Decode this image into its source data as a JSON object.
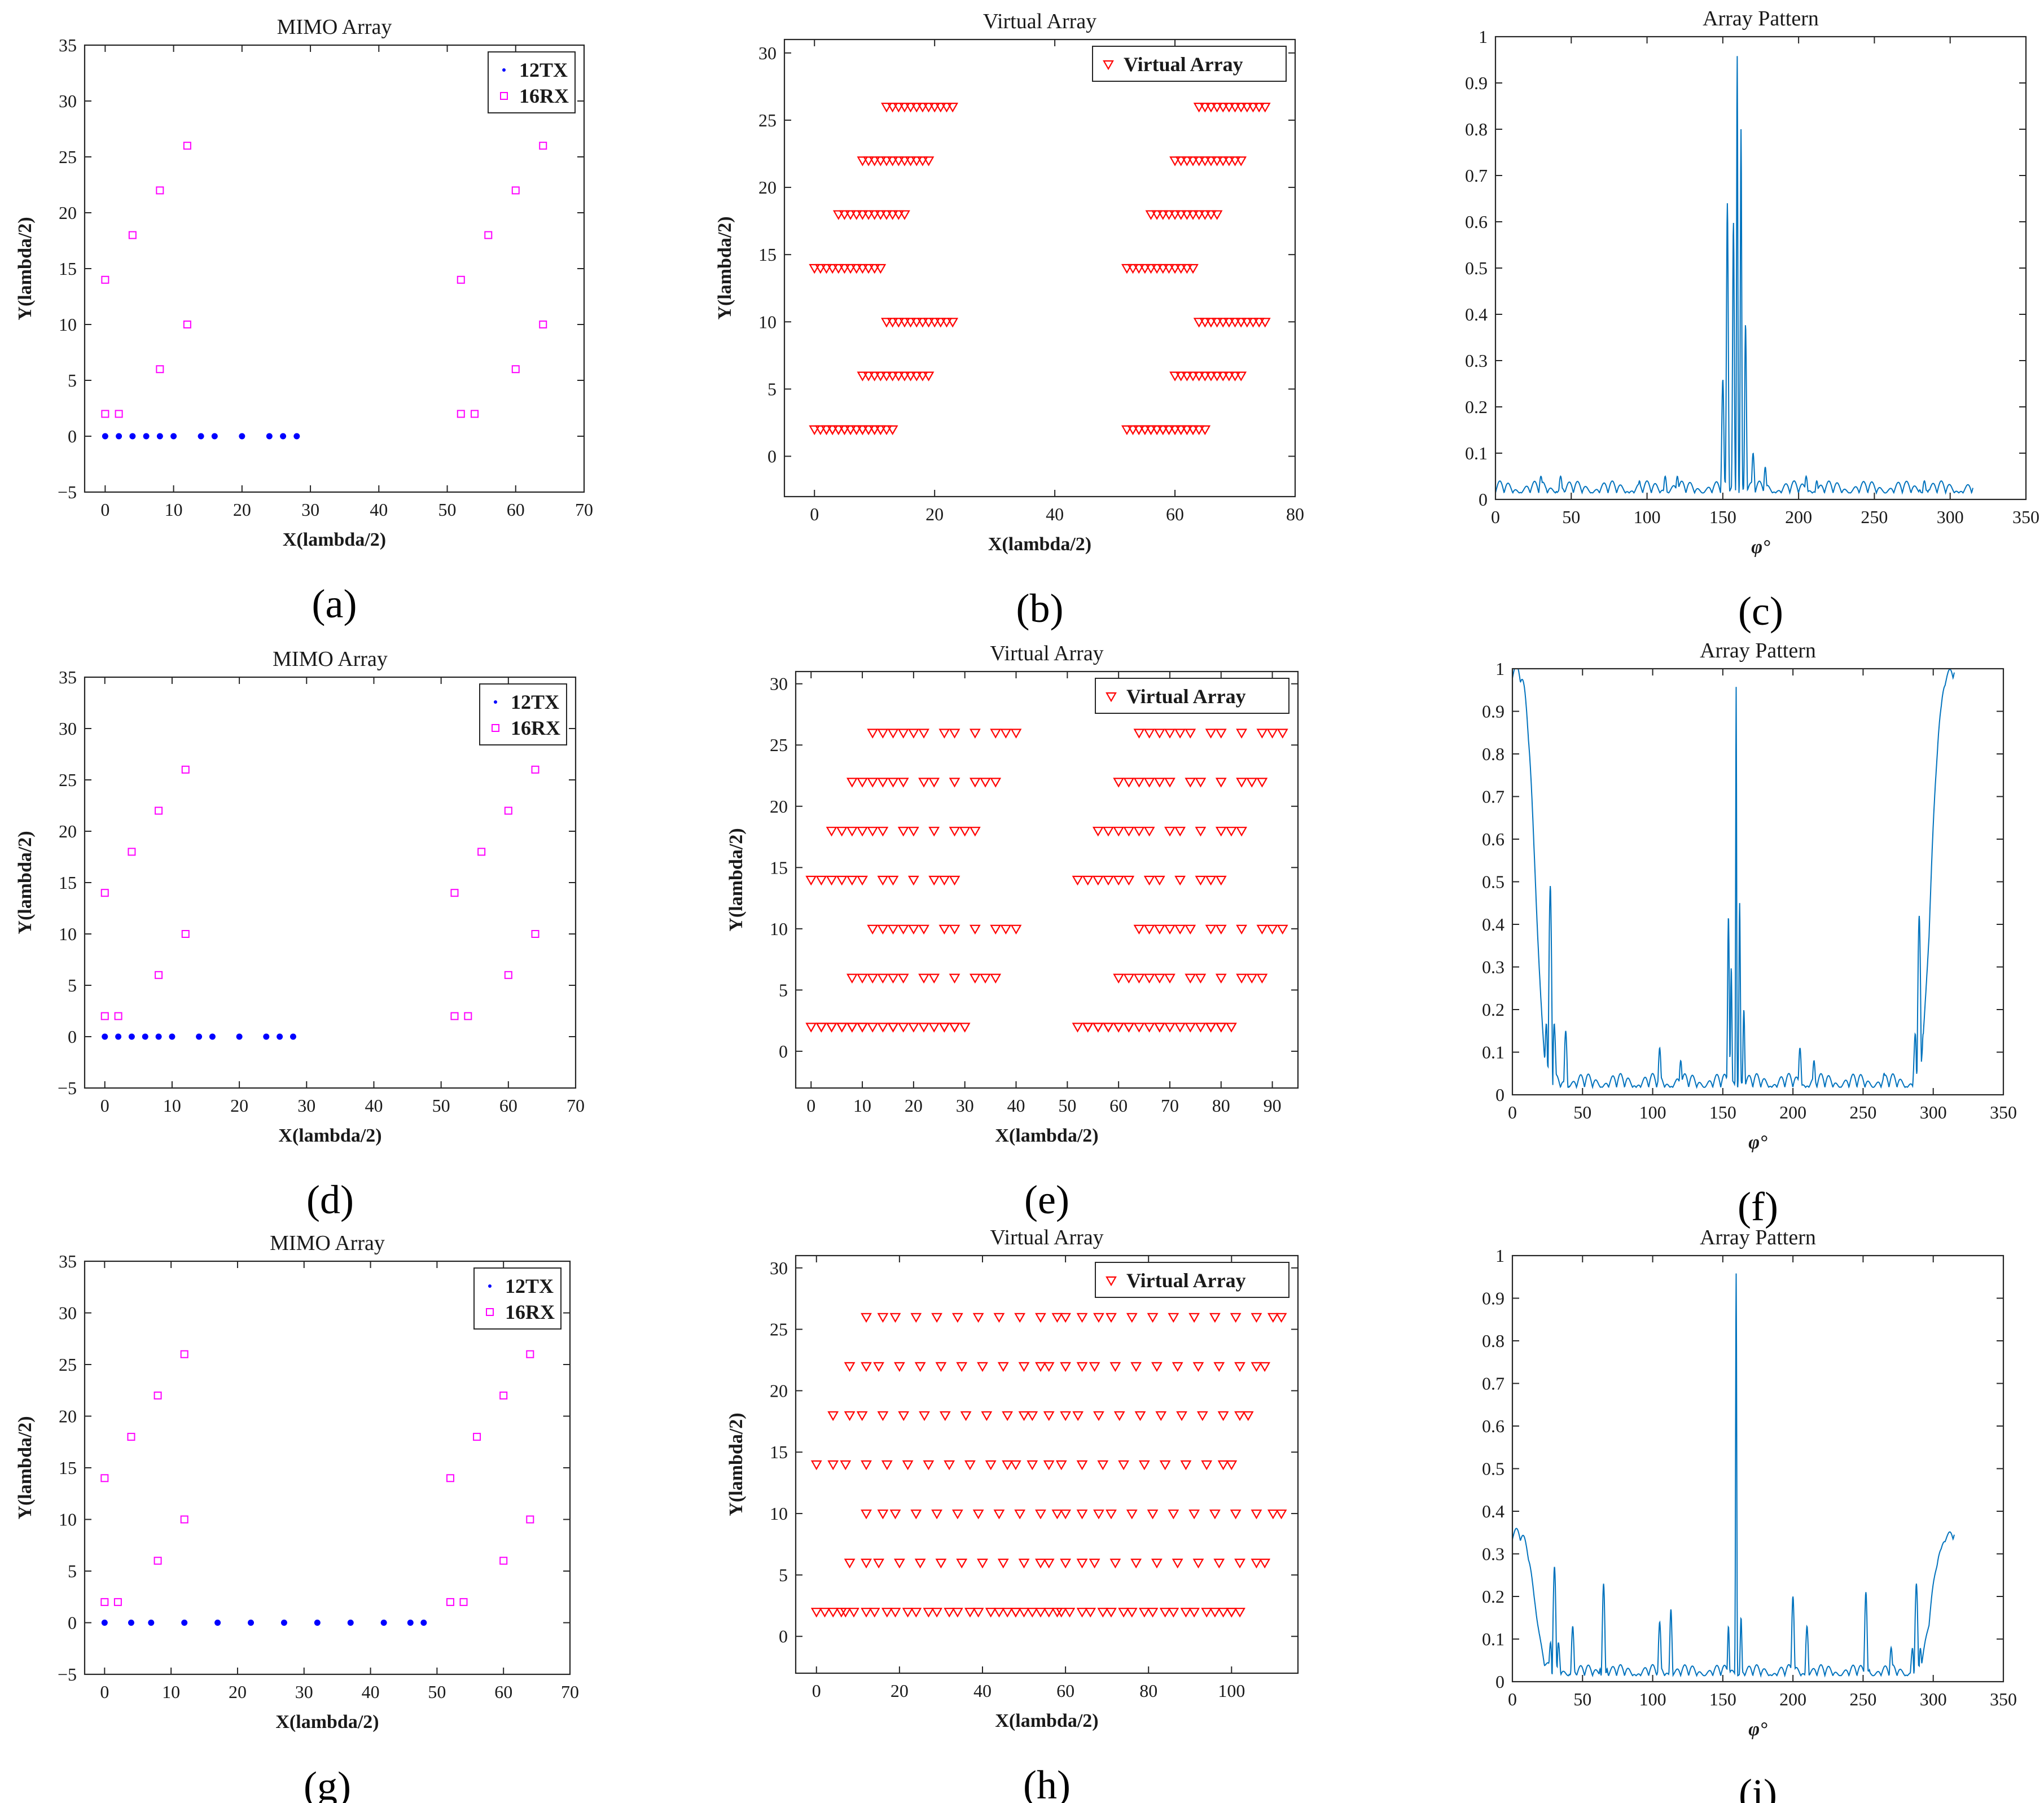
{
  "colors": {
    "tx": "#0000ff",
    "rx": "#ff00ff",
    "virtual": "#ff0000",
    "pattern": "#0072bd",
    "axis": "#262626"
  },
  "chart_data": [
    {
      "id": "a",
      "type": "scatter",
      "caption": "a",
      "title": "MIMO Array",
      "xlabel": "X(lambda/2)",
      "ylabel": "Y(lambda/2)",
      "xlim": [
        -3,
        70
      ],
      "ylim": [
        -5,
        35
      ],
      "xticks": [
        0,
        10,
        20,
        30,
        40,
        50,
        60,
        70
      ],
      "yticks": [
        -5,
        0,
        5,
        10,
        15,
        20,
        25,
        30,
        35
      ],
      "series": [
        {
          "name": "12TX",
          "marker": "dot",
          "color": "#0000ff",
          "x": [
            0,
            2,
            4,
            6,
            8,
            10,
            14,
            16,
            20,
            24,
            26,
            28
          ],
          "y": [
            0,
            0,
            0,
            0,
            0,
            0,
            0,
            0,
            0,
            0,
            0,
            0
          ]
        },
        {
          "name": "16RX",
          "marker": "square",
          "color": "#ff00ff",
          "x": [
            0,
            2,
            0,
            4,
            8,
            8,
            12,
            12,
            52,
            54,
            52,
            56,
            60,
            60,
            64,
            64
          ],
          "y": [
            2,
            2,
            14,
            18,
            22,
            6,
            26,
            10,
            2,
            2,
            14,
            18,
            22,
            6,
            26,
            10
          ]
        }
      ],
      "legend_position": "top-right"
    },
    {
      "id": "b",
      "type": "scatter",
      "caption": "b",
      "title": "Virtual Array",
      "xlabel": "X(lambda/2)",
      "ylabel": "Y(lambda/2)",
      "xlim": [
        -5,
        80
      ],
      "ylim": [
        -3,
        31
      ],
      "xticks": [
        0,
        20,
        40,
        60,
        80
      ],
      "yticks": [
        0,
        5,
        10,
        15,
        20,
        25,
        30
      ],
      "series": [
        {
          "name": "Virtual Array",
          "marker": "triangle",
          "color": "#ff0000",
          "tx": [
            0,
            1,
            2,
            3,
            4,
            5,
            6,
            7,
            8,
            9,
            10,
            11
          ],
          "rx_x": [
            0,
            2,
            0,
            4,
            8,
            8,
            12,
            12,
            52,
            54,
            52,
            56,
            60,
            60,
            64,
            64
          ],
          "rx_y": [
            2,
            2,
            14,
            18,
            22,
            6,
            26,
            10,
            2,
            2,
            14,
            18,
            22,
            6,
            26,
            10
          ]
        }
      ],
      "legend_position": "top-right"
    },
    {
      "id": "c",
      "type": "line",
      "caption": "c",
      "title": "Array Pattern",
      "xlabel": "φ°",
      "ylabel": "",
      "xlim": [
        0,
        350
      ],
      "ylim": [
        0,
        1
      ],
      "xticks": [
        0,
        50,
        100,
        150,
        200,
        250,
        300,
        350
      ],
      "yticks": [
        0,
        0.1,
        0.2,
        0.3,
        0.4,
        0.5,
        0.6,
        0.7,
        0.8,
        0.9,
        1
      ],
      "curve": {
        "x_end": 315,
        "base": 0.04,
        "ends": [
          0.0,
          0.0
        ],
        "peaks": [
          [
            30,
            0.05,
            4
          ],
          [
            43,
            0.05,
            3
          ],
          [
            95,
            0.04,
            2
          ],
          [
            112,
            0.05,
            2
          ],
          [
            120,
            0.05,
            2
          ],
          [
            150,
            0.26,
            1.2
          ],
          [
            153,
            0.64,
            1
          ],
          [
            157,
            0.6,
            0.9
          ],
          [
            159.5,
            0.96,
            0.6
          ],
          [
            162,
            0.8,
            0.7
          ],
          [
            165,
            0.38,
            0.9
          ],
          [
            170,
            0.1,
            1.5
          ],
          [
            178,
            0.07,
            1.5
          ],
          [
            205,
            0.05,
            2
          ],
          [
            212,
            0.04,
            2
          ],
          [
            283,
            0.04,
            4
          ]
        ]
      },
      "series": [
        {
          "name": "pattern",
          "color": "#0072bd"
        }
      ]
    },
    {
      "id": "d",
      "type": "scatter",
      "caption": "d",
      "title": "MIMO Array",
      "xlabel": "X(lambda/2)",
      "ylabel": "Y(lambda/2)",
      "xlim": [
        -3,
        70
      ],
      "ylim": [
        -5,
        35
      ],
      "xticks": [
        0,
        10,
        20,
        30,
        40,
        50,
        60,
        70
      ],
      "yticks": [
        -5,
        0,
        5,
        10,
        15,
        20,
        25,
        30,
        35
      ],
      "series": [
        {
          "name": "12TX",
          "marker": "dot",
          "color": "#0000ff",
          "x": [
            0,
            2,
            4,
            6,
            8,
            10,
            14,
            16,
            20,
            24,
            26,
            28
          ],
          "y": [
            0,
            0,
            0,
            0,
            0,
            0,
            0,
            0,
            0,
            0,
            0,
            0
          ]
        },
        {
          "name": "16RX",
          "marker": "square",
          "color": "#ff00ff",
          "x": [
            0,
            2,
            0,
            4,
            8,
            8,
            12,
            12,
            52,
            54,
            52,
            56,
            60,
            60,
            64,
            64
          ],
          "y": [
            2,
            2,
            14,
            18,
            22,
            6,
            26,
            10,
            2,
            2,
            14,
            18,
            22,
            6,
            26,
            10
          ]
        }
      ],
      "legend_position": "top-right"
    },
    {
      "id": "e",
      "type": "scatter",
      "caption": "e",
      "title": "Virtual Array",
      "xlabel": "X(lambda/2)",
      "ylabel": "Y(lambda/2)",
      "xlim": [
        -3,
        95
      ],
      "ylim": [
        -3,
        31
      ],
      "xticks": [
        0,
        10,
        20,
        30,
        40,
        50,
        60,
        70,
        80,
        90
      ],
      "yticks": [
        0,
        5,
        10,
        15,
        20,
        25,
        30
      ],
      "series": [
        {
          "name": "Virtual Array",
          "marker": "triangle",
          "color": "#ff0000",
          "tx": [
            0,
            2,
            4,
            6,
            8,
            10,
            14,
            16,
            20,
            24,
            26,
            28
          ],
          "rx_x": [
            0,
            2,
            0,
            4,
            8,
            8,
            12,
            12,
            52,
            54,
            52,
            56,
            60,
            60,
            64,
            64
          ],
          "rx_y": [
            2,
            2,
            14,
            18,
            22,
            6,
            26,
            10,
            2,
            2,
            14,
            18,
            22,
            6,
            26,
            10
          ]
        }
      ],
      "legend_position": "top-right"
    },
    {
      "id": "f",
      "type": "line",
      "caption": "f",
      "title": "Array Pattern",
      "xlabel": "φ°",
      "ylabel": "",
      "xlim": [
        0,
        350
      ],
      "ylim": [
        0,
        1
      ],
      "xticks": [
        0,
        50,
        100,
        150,
        200,
        250,
        300,
        350
      ],
      "yticks": [
        0,
        0.1,
        0.2,
        0.3,
        0.4,
        0.5,
        0.6,
        0.7,
        0.8,
        0.9,
        1
      ],
      "curve": {
        "x_end": 315,
        "base": 0.05,
        "ends": [
          0.96,
          0.96
        ],
        "peaks": [
          [
            27,
            0.49,
            3
          ],
          [
            38,
            0.15,
            2
          ],
          [
            105,
            0.11,
            2
          ],
          [
            120,
            0.08,
            2
          ],
          [
            154,
            0.42,
            1
          ],
          [
            156,
            0.3,
            0.8
          ],
          [
            159.5,
            0.96,
            0.5
          ],
          [
            162,
            0.45,
            0.8
          ],
          [
            165,
            0.2,
            1
          ],
          [
            205,
            0.11,
            2
          ],
          [
            215,
            0.08,
            2
          ],
          [
            265,
            0.05,
            3
          ],
          [
            290,
            0.42,
            3
          ]
        ]
      },
      "series": [
        {
          "name": "pattern",
          "color": "#0072bd"
        }
      ]
    },
    {
      "id": "g",
      "type": "scatter",
      "caption": "g",
      "title": "MIMO Array",
      "xlabel": "X(lambda/2)",
      "ylabel": "Y(lambda/2)",
      "xlim": [
        -3,
        70
      ],
      "ylim": [
        -5,
        35
      ],
      "xticks": [
        0,
        10,
        20,
        30,
        40,
        50,
        60,
        70
      ],
      "yticks": [
        -5,
        0,
        5,
        10,
        15,
        20,
        25,
        30,
        35
      ],
      "series": [
        {
          "name": "12TX",
          "marker": "dot",
          "color": "#0000ff",
          "x": [
            0,
            4,
            7,
            12,
            17,
            22,
            27,
            32,
            37,
            42,
            46,
            48
          ],
          "y": [
            0,
            0,
            0,
            0,
            0,
            0,
            0,
            0,
            0,
            0,
            0,
            0
          ]
        },
        {
          "name": "16RX",
          "marker": "square",
          "color": "#ff00ff",
          "x": [
            0,
            2,
            0,
            4,
            8,
            8,
            12,
            12,
            52,
            54,
            52,
            56,
            60,
            60,
            64,
            64
          ],
          "y": [
            2,
            2,
            14,
            18,
            22,
            6,
            26,
            10,
            2,
            2,
            14,
            18,
            22,
            6,
            26,
            10
          ]
        }
      ],
      "legend_position": "top-right"
    },
    {
      "id": "h",
      "type": "scatter",
      "caption": "h",
      "title": "Virtual Array",
      "xlabel": "X(lambda/2)",
      "ylabel": "Y(lambda/2)",
      "xlim": [
        -5,
        116
      ],
      "ylim": [
        -3,
        31
      ],
      "xticks": [
        0,
        20,
        40,
        60,
        80,
        100
      ],
      "yticks": [
        0,
        5,
        10,
        15,
        20,
        25,
        30
      ],
      "series": [
        {
          "name": "Virtual Array",
          "marker": "triangle",
          "color": "#ff0000",
          "tx": [
            0,
            4,
            7,
            12,
            17,
            22,
            27,
            32,
            37,
            42,
            46,
            48
          ],
          "rx_x": [
            0,
            2,
            0,
            4,
            8,
            8,
            12,
            12,
            52,
            54,
            52,
            56,
            60,
            60,
            64,
            64
          ],
          "rx_y": [
            2,
            2,
            14,
            18,
            22,
            6,
            26,
            10,
            2,
            2,
            14,
            18,
            22,
            6,
            26,
            10
          ]
        }
      ],
      "legend_position": "top-right"
    },
    {
      "id": "i",
      "type": "line",
      "caption": "i",
      "title": "Array Pattern",
      "xlabel": "φ°",
      "ylabel": "",
      "xlim": [
        0,
        350
      ],
      "ylim": [
        0,
        1
      ],
      "xticks": [
        0,
        50,
        100,
        150,
        200,
        250,
        300,
        350
      ],
      "yticks": [
        0,
        0.1,
        0.2,
        0.3,
        0.4,
        0.5,
        0.6,
        0.7,
        0.8,
        0.9,
        1
      ],
      "curve": {
        "x_end": 315,
        "base": 0.04,
        "ends": [
          0.32,
          0.32
        ],
        "peaks": [
          [
            30,
            0.27,
            3
          ],
          [
            43,
            0.13,
            2
          ],
          [
            65,
            0.23,
            2
          ],
          [
            105,
            0.14,
            2
          ],
          [
            113,
            0.17,
            1.5
          ],
          [
            154,
            0.13,
            1
          ],
          [
            159.5,
            0.96,
            0.6
          ],
          [
            163,
            0.15,
            1
          ],
          [
            200,
            0.2,
            2
          ],
          [
            210,
            0.13,
            2
          ],
          [
            252,
            0.21,
            2
          ],
          [
            270,
            0.08,
            2
          ],
          [
            288,
            0.23,
            3
          ]
        ]
      },
      "series": [
        {
          "name": "pattern",
          "color": "#0072bd"
        }
      ]
    }
  ]
}
